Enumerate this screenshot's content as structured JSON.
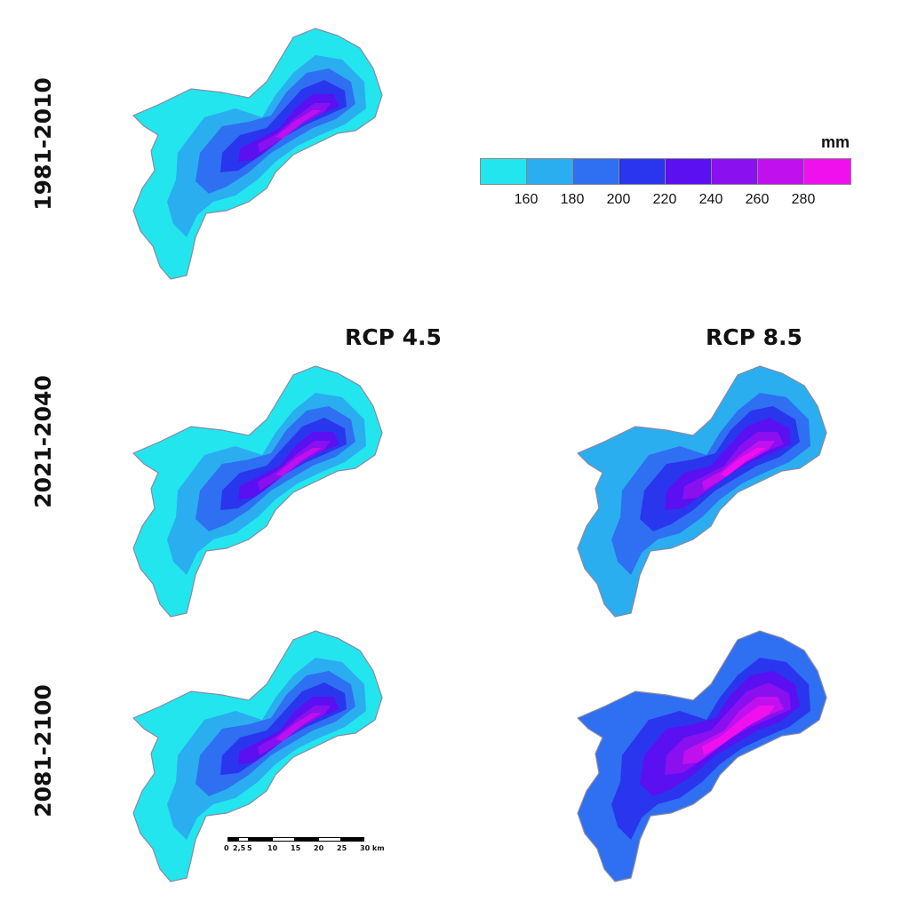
{
  "rows": [
    "1981-2010",
    "2021-2040",
    "2081-2100"
  ],
  "columns": [
    "RCP 4.5",
    "RCP 8.5"
  ],
  "legend": {
    "unit": "mm",
    "colors": [
      "#22e5ee",
      "#2aaef0",
      "#2f6ff2",
      "#2a35ee",
      "#5a10f0",
      "#8a10ef",
      "#c010ee",
      "#f010ee"
    ],
    "ticks": [
      "160",
      "180",
      "200",
      "220",
      "240",
      "260",
      "280"
    ]
  },
  "scale": {
    "labels": [
      "0",
      "2,5",
      "5",
      "10",
      "15",
      "20",
      "25",
      "30 km"
    ]
  },
  "maps": [
    {
      "id": "baseline",
      "levels": [
        0,
        1,
        2,
        3,
        4,
        5,
        6
      ]
    },
    {
      "id": "rcp45-2021",
      "levels": [
        0,
        1,
        2,
        3,
        4,
        5,
        6
      ]
    },
    {
      "id": "rcp85-2021",
      "levels": [
        1,
        2,
        3,
        4,
        5,
        6,
        7
      ]
    },
    {
      "id": "rcp45-2081",
      "levels": [
        0,
        1,
        2,
        3,
        4,
        5,
        6
      ]
    },
    {
      "id": "rcp85-2081",
      "levels": [
        2,
        3,
        4,
        5,
        6,
        7,
        7
      ]
    }
  ]
}
